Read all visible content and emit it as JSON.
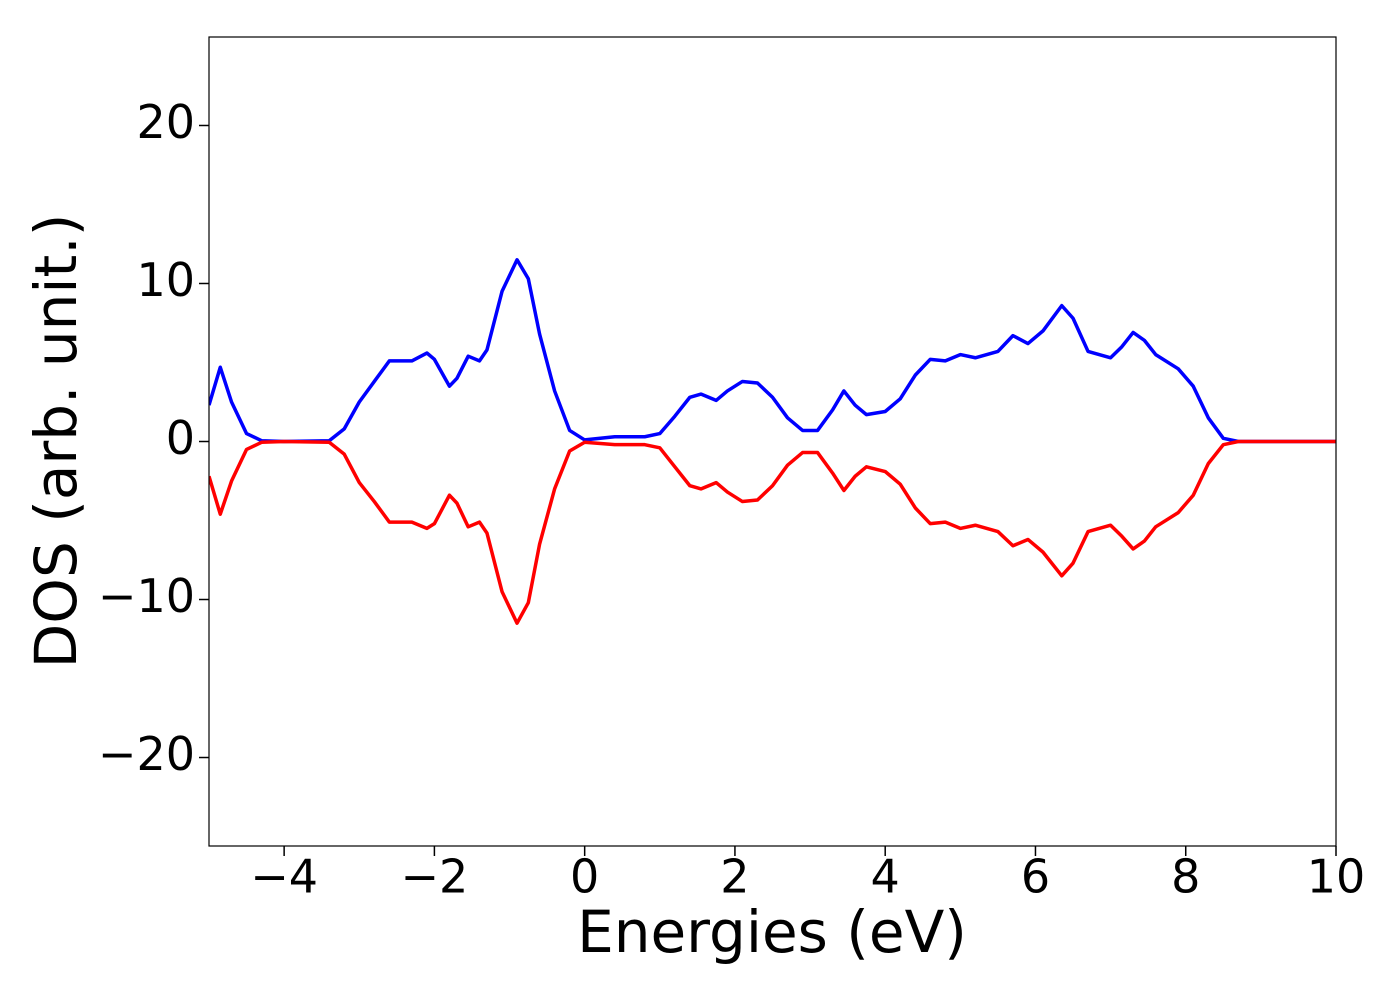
{
  "chart_data": {
    "type": "line",
    "xlabel": "Energies (eV)",
    "ylabel": "DOS (arb. unit.)",
    "x": [
      -5,
      -4.85,
      -4.7,
      -4.5,
      -4.3,
      -4,
      -3.4,
      -3.2,
      -3.0,
      -2.8,
      -2.6,
      -2.4,
      -2.3,
      -2.1,
      -2.0,
      -1.8,
      -1.7,
      -1.55,
      -1.4,
      -1.3,
      -1.1,
      -0.9,
      -0.75,
      -0.6,
      -0.4,
      -0.2,
      0,
      0.4,
      0.8,
      1.0,
      1.2,
      1.4,
      1.55,
      1.75,
      1.9,
      2.1,
      2.3,
      2.5,
      2.7,
      2.9,
      3.1,
      3.3,
      3.45,
      3.6,
      3.75,
      4.0,
      4.2,
      4.4,
      4.6,
      4.8,
      5.0,
      5.2,
      5.5,
      5.7,
      5.9,
      6.1,
      6.35,
      6.5,
      6.7,
      7.0,
      7.15,
      7.3,
      7.45,
      7.6,
      7.9,
      8.1,
      8.3,
      8.5,
      8.7,
      10
    ],
    "series": [
      {
        "color": "#0000ff",
        "values": [
          2.3,
          4.7,
          2.5,
          0.5,
          0.05,
          0,
          0.05,
          0.8,
          2.5,
          3.8,
          5.1,
          5.1,
          5.1,
          5.6,
          5.2,
          3.5,
          4.0,
          5.4,
          5.1,
          5.8,
          9.5,
          11.5,
          10.3,
          6.8,
          3.2,
          0.7,
          0.1,
          0.3,
          0.3,
          0.5,
          1.6,
          2.8,
          3.0,
          2.6,
          3.2,
          3.8,
          3.7,
          2.8,
          1.5,
          0.7,
          0.7,
          2.0,
          3.2,
          2.3,
          1.7,
          1.9,
          2.7,
          4.2,
          5.2,
          5.1,
          5.5,
          5.3,
          5.7,
          6.7,
          6.2,
          7.0,
          8.6,
          7.8,
          5.7,
          5.3,
          6.0,
          6.9,
          6.4,
          5.5,
          4.6,
          3.5,
          1.5,
          0.2,
          0,
          0
        ]
      },
      {
        "color": "#ff0000",
        "values": [
          -2.2,
          -4.6,
          -2.5,
          -0.5,
          -0.05,
          0,
          -0.05,
          -0.8,
          -2.6,
          -3.8,
          -5.1,
          -5.1,
          -5.1,
          -5.5,
          -5.2,
          -3.4,
          -3.9,
          -5.4,
          -5.1,
          -5.8,
          -9.5,
          -11.5,
          -10.2,
          -6.5,
          -3.0,
          -0.6,
          -0.05,
          -0.2,
          -0.2,
          -0.4,
          -1.6,
          -2.8,
          -3.0,
          -2.6,
          -3.2,
          -3.8,
          -3.7,
          -2.8,
          -1.5,
          -0.7,
          -0.7,
          -2.0,
          -3.1,
          -2.2,
          -1.6,
          -1.9,
          -2.7,
          -4.2,
          -5.2,
          -5.1,
          -5.5,
          -5.3,
          -5.7,
          -6.6,
          -6.2,
          -7.0,
          -8.5,
          -7.7,
          -5.7,
          -5.3,
          -6.0,
          -6.8,
          -6.3,
          -5.4,
          -4.5,
          -3.4,
          -1.4,
          -0.2,
          0,
          0
        ]
      }
    ],
    "xlim": [
      -5,
      10
    ],
    "xticks": [
      {
        "value": -4,
        "label": "−4"
      },
      {
        "value": -2,
        "label": "−2"
      },
      0,
      2,
      4,
      6,
      8,
      10
    ],
    "ylim": [
      -25.6,
      25.6
    ],
    "yticks": [
      {
        "value": -20,
        "label": "−20"
      },
      {
        "value": -10,
        "label": "−10"
      },
      0,
      10,
      20
    ],
    "grid": false
  }
}
